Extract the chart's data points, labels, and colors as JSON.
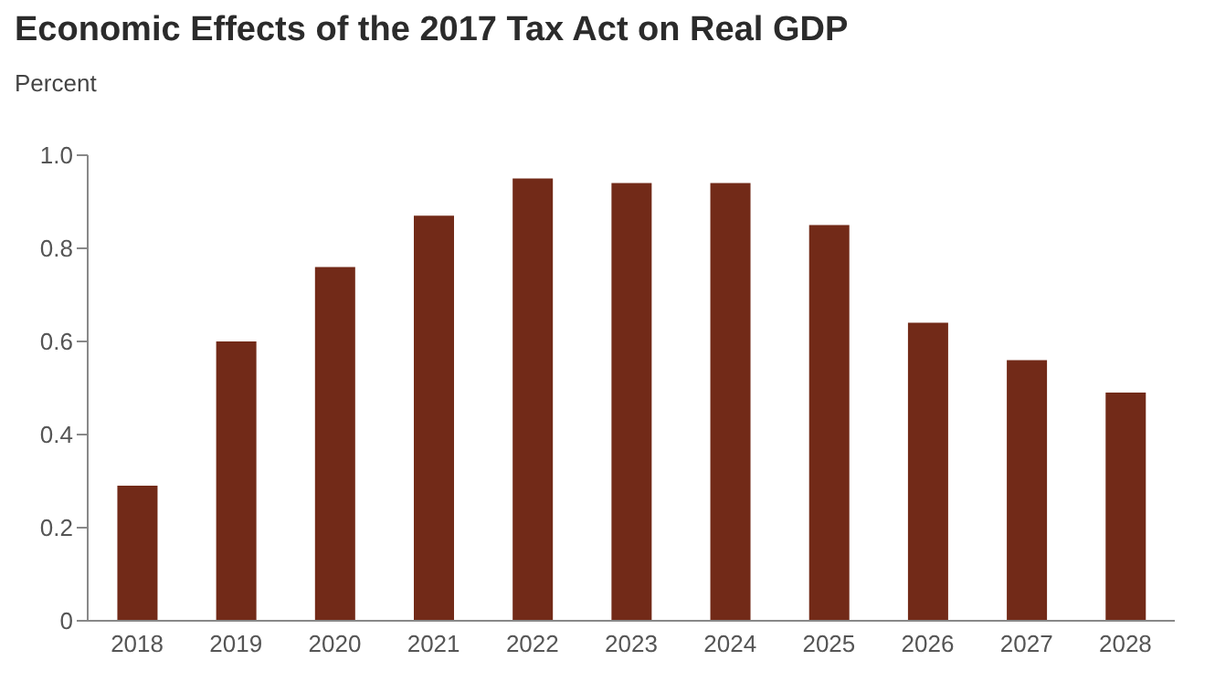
{
  "chart_data": {
    "type": "bar",
    "title": "Economic Effects of the 2017 Tax Act on Real GDP",
    "ylabel": "Percent",
    "categories": [
      "2018",
      "2019",
      "2020",
      "2021",
      "2022",
      "2023",
      "2024",
      "2025",
      "2026",
      "2027",
      "2028"
    ],
    "values": [
      0.29,
      0.6,
      0.76,
      0.87,
      0.95,
      0.94,
      0.94,
      0.85,
      0.64,
      0.56,
      0.49
    ],
    "color": "#722a18",
    "ylim": [
      0,
      1
    ],
    "yticks": [
      0,
      {
        "value": 0.2,
        "label": "0.2"
      },
      {
        "value": 0.4,
        "label": "0.4"
      },
      {
        "value": 0.6,
        "label": "0.6"
      },
      {
        "value": 0.8,
        "label": "0.8"
      },
      {
        "value": 1,
        "label": "1.0"
      }
    ],
    "grid": false
  }
}
